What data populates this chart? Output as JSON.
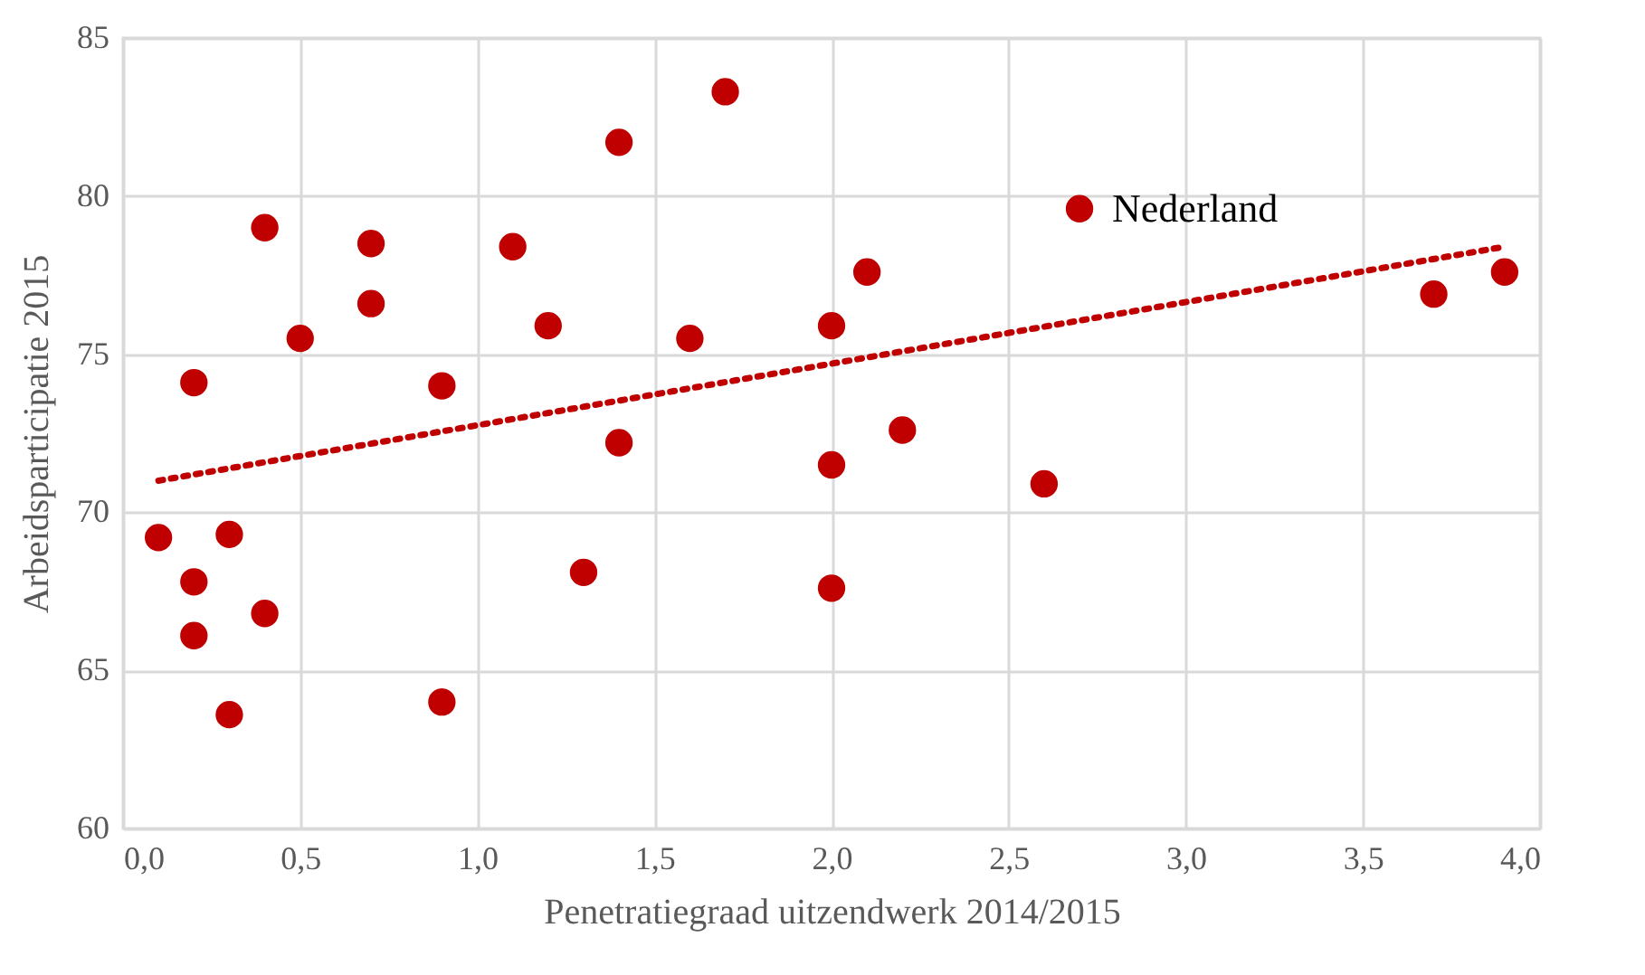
{
  "chart_data": {
    "type": "scatter",
    "xlabel": "Penetratiegraad uitzendwerk 2014/2015",
    "ylabel": "Arbeidsparticipatie 2015",
    "xlim": [
      0,
      4
    ],
    "xticks": [
      {
        "value": 0,
        "label": "0,0"
      },
      {
        "value": 0.5,
        "label": "0,5"
      },
      {
        "value": 1,
        "label": "1,0"
      },
      {
        "value": 1.5,
        "label": "1,5"
      },
      {
        "value": 2,
        "label": "2,0"
      },
      {
        "value": 2.5,
        "label": "2,5"
      },
      {
        "value": 3,
        "label": "3,0"
      },
      {
        "value": 3.5,
        "label": "3,5"
      },
      {
        "value": 4,
        "label": "4,0"
      }
    ],
    "ylim": [
      60,
      85
    ],
    "yticks": [
      60,
      65,
      70,
      75,
      80,
      85
    ],
    "grid": true,
    "series": [
      {
        "color": "#c00000",
        "marker": "circle",
        "x": [
          0.1,
          0.2,
          0.2,
          0.2,
          0.3,
          0.3,
          0.4,
          0.4,
          0.5,
          0.7,
          0.7,
          0.9,
          0.9,
          1.1,
          1.2,
          1.3,
          1.4,
          1.4,
          1.6,
          1.7,
          2.0,
          2.0,
          2.0,
          2.1,
          2.2,
          2.6,
          2.7,
          3.7,
          3.9
        ],
        "values": [
          69.2,
          74.1,
          67.8,
          66.1,
          69.3,
          63.6,
          79.0,
          66.8,
          75.5,
          78.5,
          76.6,
          74.0,
          64.0,
          78.4,
          75.9,
          68.1,
          81.7,
          72.2,
          75.5,
          83.3,
          75.9,
          71.5,
          67.6,
          77.6,
          72.6,
          70.9,
          79.6,
          76.9,
          77.6
        ]
      },
      {
        "type": "line",
        "color": "#c00000",
        "line_style": "dotted",
        "x": [
          0.1,
          3.9
        ],
        "values": [
          71.0,
          78.4
        ]
      }
    ],
    "annotations": [
      {
        "text": "Nederland",
        "x": 2.7,
        "y": 79.6
      }
    ]
  }
}
